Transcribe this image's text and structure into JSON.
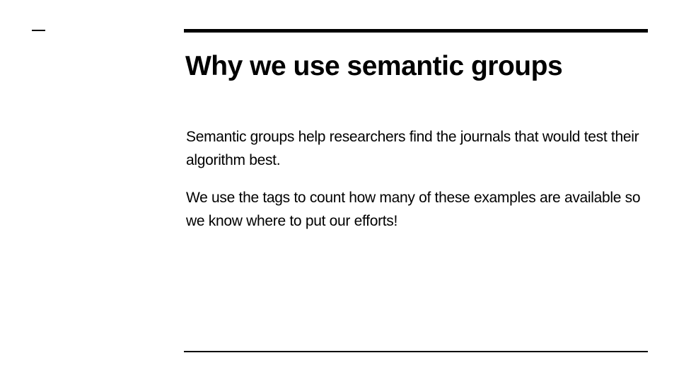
{
  "slide": {
    "title": "Why we use semantic groups",
    "paragraphs": [
      "Semantic groups help researchers find the journals that would test their algorithm best.",
      "We use the tags to count how many of these examples are available so we know where to put our efforts!"
    ]
  },
  "colors": {
    "background": "#ffffff",
    "text": "#000000",
    "rule": "#000000"
  }
}
